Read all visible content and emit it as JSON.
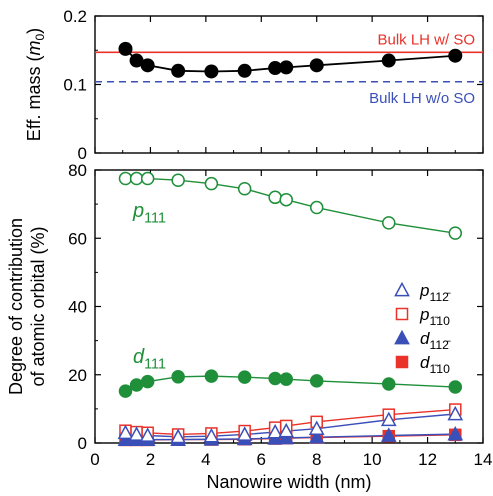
{
  "chart_data": [
    {
      "type": "line",
      "ylabel": "Eff. mass (",
      "ylabel_unit_base": "m",
      "ylabel_unit_sub": "0",
      "ylabel_close": ")",
      "xlim": [
        0,
        14
      ],
      "ylim": [
        0,
        0.2
      ],
      "yticks": [
        "0",
        "0.1",
        "0.2"
      ],
      "grid": false,
      "series": [
        {
          "color": "#000000",
          "marker": "filled-circle",
          "x": [
            1.1,
            1.5,
            1.9,
            3.0,
            4.2,
            5.4,
            6.5,
            6.9,
            8.0,
            10.6,
            13.0
          ],
          "y": [
            0.152,
            0.135,
            0.128,
            0.12,
            0.119,
            0.12,
            0.124,
            0.125,
            0.128,
            0.135,
            0.142
          ]
        }
      ],
      "reference_lines": [
        {
          "label": "Bulk LH w/ SO",
          "y": 0.147,
          "color": "#e8322a",
          "style": "solid"
        },
        {
          "label": "Bulk LH w/o SO",
          "y": 0.104,
          "color": "#3a4fb8",
          "style": "dashed"
        }
      ]
    },
    {
      "type": "line",
      "xlabel": "Nanowire width (nm)",
      "ylabel_line1": "Degree of contribution",
      "ylabel_line2": "of atomic orbital (%)",
      "xlim": [
        0,
        14
      ],
      "ylim": [
        0,
        80
      ],
      "xticks": [
        "0",
        "2",
        "4",
        "6",
        "8",
        "10",
        "12",
        "14"
      ],
      "yticks": [
        "0",
        "20",
        "40",
        "60",
        "80"
      ],
      "grid": false,
      "legend_position": "right",
      "x": [
        1.1,
        1.5,
        1.9,
        3.0,
        4.2,
        5.4,
        6.5,
        6.9,
        8.0,
        10.6,
        13.0
      ],
      "series": [
        {
          "label_base": "p",
          "label_sub": "111",
          "color": "#1f8f3a",
          "marker": "open-circle",
          "values": [
            77.5,
            77.5,
            77.5,
            77.0,
            76.0,
            74.5,
            72.0,
            71.3,
            69.0,
            64.5,
            61.5
          ]
        },
        {
          "label_base": "d",
          "label_sub": "111",
          "color": "#1f8f3a",
          "marker": "filled-circle",
          "values": [
            15.2,
            17.0,
            18.0,
            19.4,
            19.6,
            19.3,
            18.9,
            18.7,
            18.2,
            17.3,
            16.4
          ]
        },
        {
          "label_base": "p",
          "label_sub": "112̄",
          "color": "#3a4fb8",
          "marker": "open-triangle",
          "values": [
            3.0,
            2.5,
            2.2,
            1.8,
            2.0,
            2.5,
            3.2,
            3.5,
            4.2,
            6.8,
            8.5
          ]
        },
        {
          "label_base": "p",
          "label_sub": "1̄10",
          "color": "#e8322a",
          "marker": "open-square",
          "values": [
            3.6,
            3.2,
            3.0,
            2.5,
            2.8,
            3.5,
            4.5,
            5.0,
            6.2,
            8.3,
            9.8
          ]
        },
        {
          "label_base": "d",
          "label_sub": "112̄",
          "color": "#3a4fb8",
          "marker": "filled-triangle",
          "values": [
            1.0,
            1.0,
            1.0,
            1.0,
            1.1,
            1.2,
            1.4,
            1.5,
            1.7,
            2.2,
            2.6
          ]
        },
        {
          "label_base": "d",
          "label_sub": "1̄10",
          "color": "#e8322a",
          "marker": "filled-square",
          "values": [
            0.9,
            0.9,
            0.9,
            1.0,
            1.0,
            1.1,
            1.3,
            1.4,
            1.6,
            2.0,
            2.4
          ]
        }
      ]
    }
  ]
}
